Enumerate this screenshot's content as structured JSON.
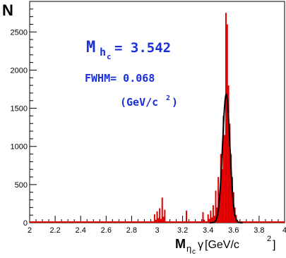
{
  "chart_data": {
    "type": "histogram",
    "ylabel": "N",
    "xlabel_parts": {
      "main": "M",
      "sub": "η",
      "subsub": "c",
      "tail": "γ",
      "unit": " [GeV/c",
      "unit_sup": "2",
      "unit_end": "]"
    },
    "xlim": [
      2.0,
      4.0
    ],
    "ylim": [
      0,
      2900
    ],
    "x_ticks": [
      2,
      2.2,
      2.4,
      2.6,
      2.8,
      3,
      3.2,
      3.4,
      3.6,
      3.8,
      4
    ],
    "x_tick_labels": [
      "2",
      "2.2",
      "2.4",
      "2.6",
      "2.8",
      "3",
      "3.2",
      "3.4",
      "3.6",
      "3.8",
      "4"
    ],
    "y_ticks": [
      0,
      500,
      1000,
      1500,
      2000,
      2500
    ],
    "y_tick_labels": [
      "0",
      "500",
      "1000",
      "1500",
      "2000",
      "2500"
    ],
    "annotation": {
      "mass_symbol": "M",
      "mass_sub": "h",
      "mass_subsub": "c",
      "mass_value": "= 3.542",
      "fwhm_text": "FWHM= 0.068",
      "units_text": "(GeV/c",
      "units_sup": "2",
      "units_end": ")"
    },
    "series": [
      {
        "color": "#e00000",
        "kind": "histogram",
        "bins": [
          [
            2.98,
            110
          ],
          [
            2.99,
            40
          ],
          [
            3.0,
            150
          ],
          [
            3.01,
            60
          ],
          [
            3.02,
            190
          ],
          [
            3.03,
            50
          ],
          [
            3.04,
            330
          ],
          [
            3.05,
            80
          ],
          [
            3.06,
            170
          ],
          [
            3.07,
            20
          ],
          [
            3.22,
            0
          ],
          [
            3.23,
            160
          ],
          [
            3.24,
            20
          ],
          [
            3.34,
            0
          ],
          [
            3.35,
            20
          ],
          [
            3.36,
            140
          ],
          [
            3.37,
            40
          ],
          [
            3.4,
            110
          ],
          [
            3.41,
            50
          ],
          [
            3.42,
            160
          ],
          [
            3.43,
            70
          ],
          [
            3.44,
            230
          ],
          [
            3.45,
            90
          ],
          [
            3.46,
            420
          ],
          [
            3.47,
            200
          ],
          [
            3.48,
            600
          ],
          [
            3.49,
            380
          ],
          [
            3.5,
            900
          ],
          [
            3.51,
            700
          ],
          [
            3.52,
            1400
          ],
          [
            3.53,
            1150
          ],
          [
            3.54,
            2750
          ],
          [
            3.545,
            1700
          ],
          [
            3.55,
            2600
          ],
          [
            3.56,
            1800
          ],
          [
            3.57,
            1300
          ],
          [
            3.58,
            900
          ],
          [
            3.59,
            600
          ],
          [
            3.6,
            400
          ],
          [
            3.61,
            200
          ],
          [
            3.62,
            100
          ],
          [
            3.63,
            40
          ],
          [
            3.64,
            0
          ]
        ]
      },
      {
        "color": "#000000",
        "kind": "fit",
        "mean": 3.542,
        "fwhm": 0.068,
        "peak": 1680
      }
    ]
  }
}
